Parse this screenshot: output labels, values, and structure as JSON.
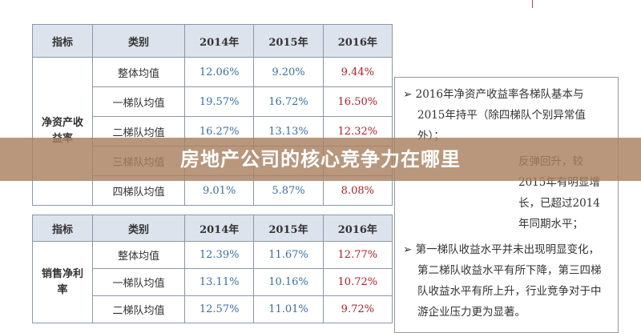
{
  "table1": {
    "headers": [
      "指标",
      "类别",
      "2014年",
      "2015年",
      "2016年"
    ],
    "indicator": "净资产收益率",
    "rows": [
      [
        "整体均值",
        "12.06%",
        "9.20%",
        "9.44%"
      ],
      [
        "一梯队均值",
        "19.57%",
        "16.72%",
        "16.50%"
      ],
      [
        "二梯队均值",
        "16.27%",
        "13.13%",
        "12.32%"
      ],
      [
        "三梯队均值"
      ],
      [
        "四梯队均值",
        "9.01%",
        "5.87%",
        "8.08%"
      ]
    ]
  },
  "table2": {
    "headers": [
      "指标",
      "类别",
      "2014年",
      "2015年",
      "2016年"
    ],
    "indicator": "销售净利率",
    "rows": [
      [
        "整体均值",
        "12.39%",
        "11.67%",
        "12.77%"
      ],
      [
        "一梯队均值",
        "13.11%",
        "10.16%",
        "10.72%"
      ],
      [
        "二梯队均值",
        "12.57%",
        "11.01%",
        "9.72%"
      ]
    ]
  },
  "notes": [
    "2016年净资产收益率各梯队基本与2015年持平（除四梯队个别异常值外）；",
    "反弹回升，较2015年有明显增长，已超过2014年同期水平；",
    "第一梯队收益水平并未出现明显变化，第二梯队收益水平有所下降，第三四梯队收益水平有所上升，行业竞争对于中游企业压力更为显著。"
  ],
  "banner": "房地产公司的核心竞争力在哪里"
}
